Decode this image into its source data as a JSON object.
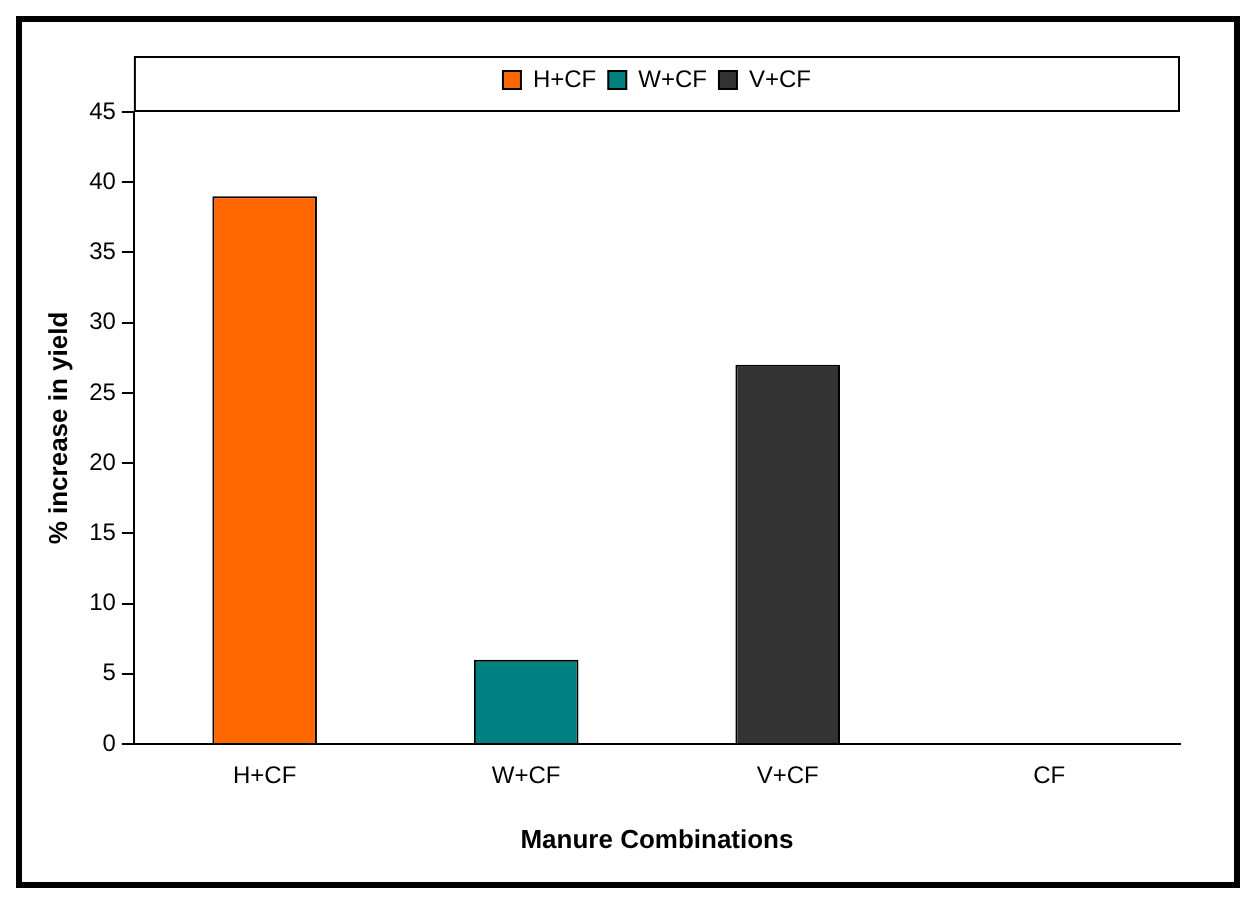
{
  "chart_data": {
    "type": "bar",
    "xlabel": "Manure Combinations",
    "ylabel": "% increase in yield",
    "categories": [
      "H+CF",
      "W+CF",
      "V+CF",
      "CF"
    ],
    "series": [
      {
        "name": "H+CF",
        "color": "#ff6600",
        "values": [
          39,
          null,
          null,
          null
        ]
      },
      {
        "name": "W+CF",
        "color": "#008080",
        "values": [
          null,
          6,
          null,
          null
        ]
      },
      {
        "name": "V+CF",
        "color": "#333333",
        "values": [
          null,
          null,
          27,
          null
        ]
      }
    ],
    "ylim": [
      0,
      45
    ],
    "yticks": [
      0,
      5,
      10,
      15,
      20,
      25,
      30,
      35,
      40,
      45
    ],
    "grid": false,
    "legend": "top"
  }
}
